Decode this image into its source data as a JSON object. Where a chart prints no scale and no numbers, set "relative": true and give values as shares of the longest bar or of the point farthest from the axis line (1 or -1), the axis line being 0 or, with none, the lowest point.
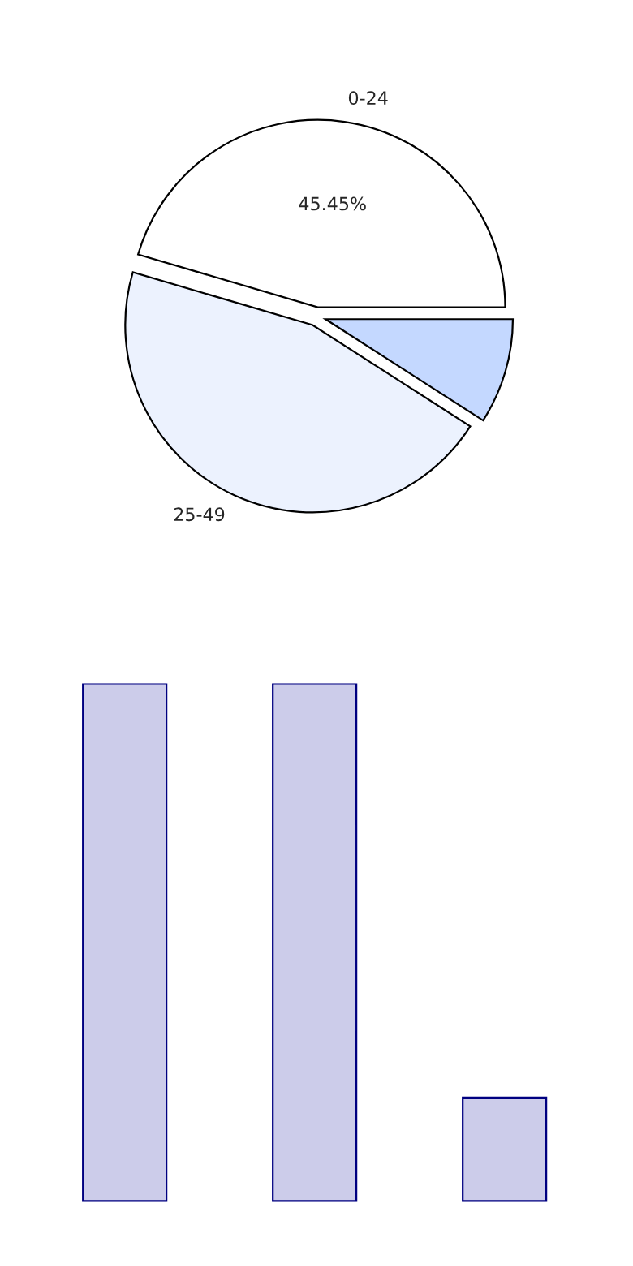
{
  "chart_data": [
    {
      "type": "pie",
      "categories": [
        "0-24",
        "25-49",
        null
      ],
      "values": [
        45.45,
        45.45,
        9.09
      ],
      "colors": [
        "#ffffff",
        "#ecf2fe",
        "#c4d8ff"
      ],
      "value_labels": [
        "45.45%",
        null,
        null
      ]
    },
    {
      "type": "bar",
      "categories": [
        null,
        null,
        null
      ],
      "values": [
        1,
        1,
        0.2
      ],
      "color": "#ccccea",
      "relative": true
    }
  ]
}
